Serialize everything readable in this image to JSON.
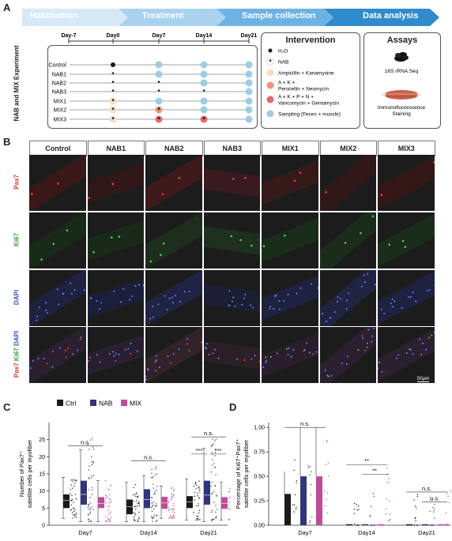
{
  "panel_letters": {
    "a": "A",
    "b": "B",
    "c": "C",
    "d": "D"
  },
  "timeline": {
    "phases": [
      "Habituation",
      "Treatment",
      "Sample collection",
      "Data analysis"
    ],
    "days": [
      "Day-7",
      "Day0",
      "Day7",
      "Day14",
      "Day21"
    ],
    "groups": [
      "Control",
      "NAB1",
      "NAB2",
      "NAB3",
      "MIX1",
      "MIX2",
      "MIX3"
    ],
    "side_label": "NAB and MIX Experiment"
  },
  "intervention": {
    "title": "Intervention",
    "items": [
      {
        "symbol": "dot",
        "text_main": "H",
        "text_sub": "2",
        "text_tail": "O",
        "color": "#1a1a1a"
      },
      {
        "symbol": "star",
        "text": "NAB",
        "color": "#ffffff"
      },
      {
        "symbol": "circle",
        "text": "Ampicillin + Kanamysine",
        "color": "#f6dcc4"
      },
      {
        "symbol": "circle",
        "text": "A + K + Penicellin + Neomycin",
        "color": "#e8937a"
      },
      {
        "symbol": "circle",
        "text": "A + K + P + N + Vancomycin + Gentamycin",
        "color": "#e46a6a"
      },
      {
        "symbol": "circle",
        "text": "Sampling (Feces + muscle)",
        "color": "#9dcde4"
      }
    ],
    "item_lines": [
      [
        "H₂O"
      ],
      [
        "NAB"
      ],
      [
        "Ampicillin + Kanamysine"
      ],
      [
        "A + K +",
        "Penicellin + Neomycin"
      ],
      [
        "A + K + P + N +",
        "Vancomycin + Gentamycin"
      ],
      [
        "Sampling (Feces + muscle)"
      ]
    ]
  },
  "assays": {
    "title": "Assays",
    "items": [
      "16S rRNA Seq",
      "Immunofluorescence Staining"
    ],
    "item_lines": [
      [
        "16S rRNA Seq"
      ],
      [
        "Immunofluorescence",
        "Staining"
      ]
    ]
  },
  "microscopy": {
    "columns": [
      "Control",
      "NAB1",
      "NAB2",
      "NAB3",
      "MIX1",
      "MIX2",
      "MIX3"
    ],
    "rows": [
      "Pax7",
      "Ki67",
      "DAPI",
      "Pax7 Ki67 DAPI"
    ],
    "merge_parts": [
      "Pax7",
      "Ki67",
      "DAPI"
    ],
    "scale_bar": "50μm"
  },
  "colors": {
    "phase": [
      "#d6e9f7",
      "#a9d2ef",
      "#6cb3e4",
      "#2f8bcb"
    ],
    "ctrl": "#1a1a1a",
    "nab": "#33357a",
    "mix": "#c04b9a",
    "pax7": "#e0312b",
    "ki67": "#2e9b3e",
    "dapi": "#3b4fc4"
  },
  "chart_data": [
    {
      "type": "bar",
      "panel": "C",
      "ylabel_lines": [
        "Number of Pax7⁺",
        "satellite cells per myofiber"
      ],
      "categories": [
        "Day7",
        "Day14",
        "Day21"
      ],
      "ylim": [
        0,
        30
      ],
      "yticks": [
        0,
        5,
        10,
        15,
        20,
        25
      ],
      "legend": [
        "Ctrl",
        "NAB",
        "MIX"
      ],
      "series": [
        {
          "name": "Ctrl",
          "values": [
            7.2,
            5.4,
            6.8
          ],
          "box": [
            [
              5,
              9
            ],
            [
              3.2,
              7.5
            ],
            [
              5,
              8.5
            ]
          ],
          "whisker": [
            [
              2,
              14
            ],
            [
              1,
              12.5
            ],
            [
              1.5,
              13.5
            ]
          ]
        },
        {
          "name": "NAB",
          "values": [
            9.0,
            7.5,
            8.8
          ],
          "box": [
            [
              6,
              13
            ],
            [
              5,
              10.5
            ],
            [
              6,
              13
            ]
          ],
          "whisker": [
            [
              1,
              22
            ],
            [
              1,
              14.5
            ],
            [
              1,
              22.5
            ]
          ]
        },
        {
          "name": "MIX",
          "values": [
            6.4,
            6.5,
            6.4
          ],
          "box": [
            [
              5,
              8.2
            ],
            [
              4.8,
              8.3
            ],
            [
              4.8,
              8.2
            ]
          ],
          "whisker": [
            [
              1,
              13
            ],
            [
              2,
              11.5
            ],
            [
              1.5,
              12.5
            ]
          ]
        }
      ],
      "annotations": [
        {
          "group": "Day7",
          "text": "n.s."
        },
        {
          "group": "Day14",
          "text": "n.s."
        },
        {
          "group": "Day21",
          "text": "n.s."
        },
        {
          "group": "Day21",
          "text": "***",
          "pair": "Ctrl-NAB"
        },
        {
          "group": "Day21",
          "text": "***",
          "pair": "NAB-MIX"
        }
      ]
    },
    {
      "type": "bar",
      "panel": "D",
      "ylabel_lines": [
        "Percentage of Ki67⁺Pax7⁺",
        "satellite cells per myofiber"
      ],
      "categories": [
        "Day7",
        "Day14",
        "Day21"
      ],
      "ylim": [
        0,
        1.05
      ],
      "yticks": [
        0.0,
        0.25,
        0.5,
        0.75,
        1.0
      ],
      "ytick_labels": [
        "0.00",
        "0.25",
        "0.50",
        "0.75",
        "1.00"
      ],
      "series": [
        {
          "name": "Ctrl",
          "values": [
            0.32,
            0.0,
            0.0
          ]
        },
        {
          "name": "NAB",
          "values": [
            0.5,
            0.0,
            0.0
          ]
        },
        {
          "name": "MIX",
          "values": [
            0.5,
            0.0,
            0.0
          ]
        }
      ],
      "annotations": [
        {
          "group": "Day7",
          "text": "n.s."
        },
        {
          "group": "Day14",
          "text": "**",
          "pair": "Ctrl-MIX"
        },
        {
          "group": "Day14",
          "text": "**",
          "pair": "NAB-MIX"
        },
        {
          "group": "Day21",
          "text": "n.s.",
          "pair": "Ctrl-MIX"
        },
        {
          "group": "Day21",
          "text": "n.s.",
          "pair": "NAB-MIX"
        }
      ]
    }
  ]
}
